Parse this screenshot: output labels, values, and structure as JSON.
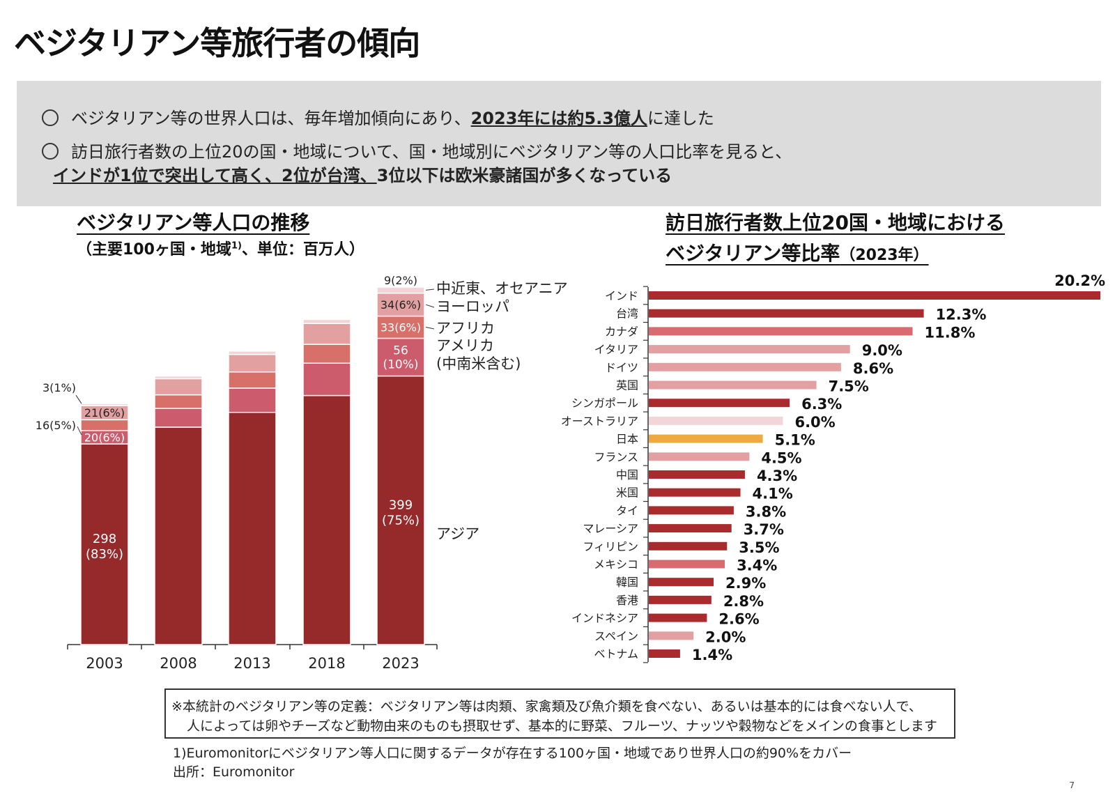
{
  "page": {
    "title": "ベジタリアン等旅行者の傾向",
    "page_number": "7"
  },
  "summary": {
    "bullet1_pre": "ベジタリアン等の世界人口は、毎年増加傾向にあり、",
    "bullet1_em": "2023年には約5.3億人",
    "bullet1_post": "に達した",
    "bullet2_line1": "訪日旅行者数の上位20の国・地域について、国・地域別にベジタリアン等の人口比率を見ると、",
    "bullet2_em": "インドが1位で突出して高く、2位が台湾、",
    "bullet2_post": "3位以下は欧米豪諸国が多くなっている"
  },
  "left_chart_header": {
    "title": "ベジタリアン等人口の推移",
    "subtitle_pre": "（主要100ヶ国・地域",
    "subtitle_sup": "1)",
    "subtitle_post": "、単位：百万人）"
  },
  "right_chart_header": {
    "title_line1": "訪日旅行者数上位20国・地域における",
    "title_line2": "ベジタリアン等比率",
    "title_year": "（2023年）"
  },
  "chart_data": [
    {
      "type": "bar",
      "stacked": true,
      "title": "ベジタリアン等人口の推移",
      "unit": "百万人",
      "categories": [
        "2003",
        "2008",
        "2013",
        "2018",
        "2023"
      ],
      "series": [
        {
          "name": "アジア",
          "color": "#962a2a",
          "values": [
            298,
            323,
            345,
            370,
            399
          ]
        },
        {
          "name": "アメリカ（中南米含む）",
          "color": "#cc5b6b",
          "values": [
            20,
            28,
            36,
            48,
            56
          ]
        },
        {
          "name": "アフリカ",
          "color": "#d8706a",
          "values": [
            16,
            20,
            24,
            28,
            33
          ]
        },
        {
          "name": "ヨーロッパ",
          "color": "#e3a0a0",
          "values": [
            21,
            24,
            26,
            31,
            34
          ]
        },
        {
          "name": "中近東、オセアニア",
          "color": "#f2d5d8",
          "values": [
            3,
            4,
            5,
            6,
            9
          ]
        }
      ],
      "data_labels": {
        "2003": {
          "asia": "298",
          "asia_pct": "(83%)",
          "america": "20(6%)",
          "africa": "16(5%)",
          "europe": "21(6%)",
          "mideast": "3(1%)"
        },
        "2023": {
          "asia": "399",
          "asia_pct": "(75%)",
          "america": "56",
          "america_pct": "(10%)",
          "africa": "33(6%)",
          "europe": "34(6%)",
          "mideast": "9(2%)"
        }
      },
      "legend": {
        "mideast": "中近東、オセアニア",
        "europe": "ヨーロッパ",
        "africa": "アフリカ",
        "america": "アメリカ",
        "america_sub": "(中南米含む)",
        "asia": "アジア"
      },
      "ylim": [
        0,
        540
      ]
    },
    {
      "type": "bar",
      "orientation": "horizontal",
      "title": "訪日旅行者数上位20国・地域におけるベジタリアン等比率（2023年）",
      "unit": "%",
      "xlim": [
        0,
        20.2
      ],
      "items": [
        {
          "label": "インド",
          "value": 20.2,
          "text": "20.2%",
          "color": "#aa2b2e"
        },
        {
          "label": "台湾",
          "value": 12.3,
          "text": "12.3%",
          "color": "#aa2b2e"
        },
        {
          "label": "カナダ",
          "value": 11.8,
          "text": "11.8%",
          "color": "#d86a70"
        },
        {
          "label": "イタリア",
          "value": 9.0,
          "text": "9.0%",
          "color": "#e3a0a3"
        },
        {
          "label": "ドイツ",
          "value": 8.6,
          "text": "8.6%",
          "color": "#e3a0a3"
        },
        {
          "label": "英国",
          "value": 7.5,
          "text": "7.5%",
          "color": "#e3a0a3"
        },
        {
          "label": "シンガポール",
          "value": 6.3,
          "text": "6.3%",
          "color": "#aa2b2e"
        },
        {
          "label": "オーストラリア",
          "value": 6.0,
          "text": "6.0%",
          "color": "#f2d5d8"
        },
        {
          "label": "日本",
          "value": 5.1,
          "text": "5.1%",
          "color": "#eeaa40"
        },
        {
          "label": "フランス",
          "value": 4.5,
          "text": "4.5%",
          "color": "#e3a0a3"
        },
        {
          "label": "中国",
          "value": 4.3,
          "text": "4.3%",
          "color": "#aa2b2e"
        },
        {
          "label": "米国",
          "value": 4.1,
          "text": "4.1%",
          "color": "#aa2b2e"
        },
        {
          "label": "タイ",
          "value": 3.8,
          "text": "3.8%",
          "color": "#aa2b2e"
        },
        {
          "label": "マレーシア",
          "value": 3.7,
          "text": "3.7%",
          "color": "#aa2b2e"
        },
        {
          "label": "フィリピン",
          "value": 3.5,
          "text": "3.5%",
          "color": "#aa2b2e"
        },
        {
          "label": "メキシコ",
          "value": 3.4,
          "text": "3.4%",
          "color": "#d86a70"
        },
        {
          "label": "韓国",
          "value": 2.9,
          "text": "2.9%",
          "color": "#aa2b2e"
        },
        {
          "label": "香港",
          "value": 2.8,
          "text": "2.8%",
          "color": "#aa2b2e"
        },
        {
          "label": "インドネシア",
          "value": 2.6,
          "text": "2.6%",
          "color": "#aa2b2e"
        },
        {
          "label": "スペイン",
          "value": 2.0,
          "text": "2.0%",
          "color": "#e3a0a3"
        },
        {
          "label": "ベトナム",
          "value": 1.4,
          "text": "1.4%",
          "color": "#aa2b2e"
        }
      ]
    }
  ],
  "note": {
    "line1": "※本統計のベジタリアン等の定義：ベジタリアン等は肉類、家禽類及び魚介類を食べない、あるいは基本的には食べない人で、",
    "line2": "人によっては卵やチーズなど動物由来のものも摂取せず、基本的に野菜、フルーツ、ナッツや穀物などをメインの食事とします"
  },
  "footnotes": {
    "f1": "1)Euromonitorにベジタリアン等人口に関するデータが存在する100ヶ国・地域であり世界人口の約90%をカバー",
    "source": "出所：Euromonitor"
  }
}
